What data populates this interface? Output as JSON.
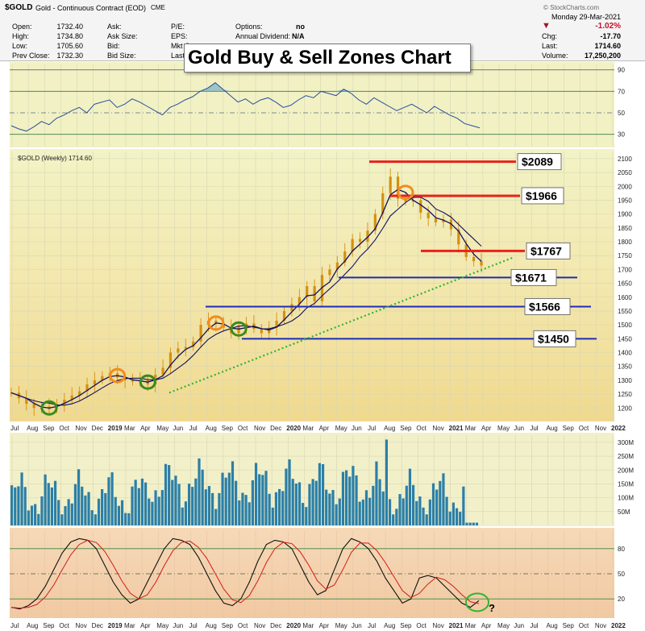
{
  "header": {
    "symbol": "$GOLD",
    "description": "Gold - Continuous Contract (EOD)",
    "exchange": "CME",
    "date": "Monday  29-Mar-2021",
    "watermark": "© StockCharts.com",
    "arrow": "▼",
    "fields": [
      {
        "label": "Open:",
        "value": "1732.40"
      },
      {
        "label": "High:",
        "value": "1734.80"
      },
      {
        "label": "Low:",
        "value": "1705.60"
      },
      {
        "label": "Prev Close:",
        "value": "1732.30"
      }
    ],
    "fields2": [
      {
        "label": "Ask:",
        "value": ""
      },
      {
        "label": "Ask Size:",
        "value": ""
      },
      {
        "label": "Bid:",
        "value": ""
      },
      {
        "label": "Bid Size:",
        "value": ""
      }
    ],
    "fields3": [
      {
        "label": "P/E:",
        "value": ""
      },
      {
        "label": "EPS:",
        "value": ""
      },
      {
        "label": "Mkt C",
        "value": ""
      },
      {
        "label": "Last",
        "value": ""
      }
    ],
    "options_label": "Options:",
    "options_value": "no",
    "dividend_label": "Annual Dividend:",
    "dividend_value": "N/A",
    "pct_change": "-1.02%",
    "chg_label": "Chg:",
    "chg_value": "-17.70",
    "last_label": "Last:",
    "last_value": "1714.60",
    "volume_label": "Volume:",
    "volume_value": "17,250,200"
  },
  "title": "Gold Buy & Sell Zones Chart",
  "colors": {
    "buy": "#3a8a1f",
    "sell": "#f28c1e",
    "resistance": "#e8211b",
    "support": "#1f2cb5",
    "trend": "#2fb52f",
    "ma": "#101060",
    "candle": "#d4900f",
    "volume": "#2b7fa8"
  },
  "chart_data": [
    {
      "type": "line",
      "panel": "rsi",
      "y_ticks": [
        30,
        50,
        70,
        90
      ],
      "ylim": [
        20,
        95
      ],
      "values": [
        38,
        35,
        33,
        37,
        42,
        39,
        45,
        48,
        52,
        55,
        50,
        58,
        60,
        62,
        55,
        58,
        63,
        60,
        56,
        52,
        48,
        55,
        58,
        62,
        65,
        70,
        73,
        78,
        72,
        66,
        60,
        63,
        58,
        62,
        64,
        60,
        55,
        57,
        62,
        66,
        64,
        70,
        68,
        66,
        72,
        68,
        62,
        58,
        64,
        60,
        56,
        52,
        55,
        58,
        54,
        50,
        56,
        52,
        48,
        45,
        40,
        38,
        36
      ]
    },
    {
      "type": "line",
      "panel": "price",
      "legend": "$GOLD (Weekly) 1714.60",
      "y_ticks": [
        1200,
        1250,
        1300,
        1350,
        1400,
        1450,
        1500,
        1550,
        1600,
        1650,
        1700,
        1750,
        1800,
        1850,
        1900,
        1950,
        2000,
        2050,
        2100
      ],
      "ylim": [
        1160,
        2120
      ],
      "x_ticks": [
        "Jul",
        "Aug",
        "Sep",
        "Oct",
        "Nov",
        "Dec",
        "2019",
        "Mar",
        "Apr",
        "May",
        "Jun",
        "Jul",
        "Aug",
        "Sep",
        "Oct",
        "Nov",
        "Dec",
        "2020",
        "Mar",
        "Apr",
        "May",
        "Jun",
        "Jul",
        "Aug",
        "Sep",
        "Oct",
        "Nov",
        "2021",
        "Mar",
        "Apr",
        "May",
        "Jun",
        "Jul",
        "Aug",
        "Sep",
        "Oct",
        "Nov",
        "2022"
      ],
      "weekly_close": [
        1255,
        1235,
        1215,
        1200,
        1195,
        1205,
        1215,
        1230,
        1245,
        1260,
        1285,
        1300,
        1315,
        1325,
        1310,
        1300,
        1295,
        1300,
        1285,
        1320,
        1345,
        1400,
        1415,
        1420,
        1440,
        1500,
        1515,
        1505,
        1490,
        1470,
        1495,
        1505,
        1485,
        1470,
        1490,
        1515,
        1550,
        1575,
        1600,
        1640,
        1585,
        1680,
        1700,
        1725,
        1765,
        1810,
        1800,
        1840,
        1900,
        1975,
        2035,
        1955,
        1945,
        1950,
        1905,
        1885,
        1870,
        1880,
        1845,
        1790,
        1745,
        1730,
        1714
      ],
      "levels": [
        {
          "label": "$2089",
          "value": 2089,
          "kind": "resistance"
        },
        {
          "label": "$1966",
          "value": 1966,
          "kind": "resistance"
        },
        {
          "label": "$1767",
          "value": 1767,
          "kind": "resistance"
        },
        {
          "label": "$1671",
          "value": 1671,
          "kind": "support"
        },
        {
          "label": "$1566",
          "value": 1566,
          "kind": "support"
        },
        {
          "label": "$1450",
          "value": 1450,
          "kind": "support"
        }
      ]
    },
    {
      "type": "bar",
      "panel": "volume",
      "y_ticks": [
        "300M",
        "250M",
        "200M",
        "150M",
        "100M",
        "50M"
      ],
      "ylim": [
        0,
        320
      ]
    },
    {
      "type": "line",
      "panel": "stochastic",
      "y_ticks": [
        20,
        50,
        80
      ],
      "ylim": [
        0,
        100
      ],
      "annotation": "?"
    }
  ]
}
